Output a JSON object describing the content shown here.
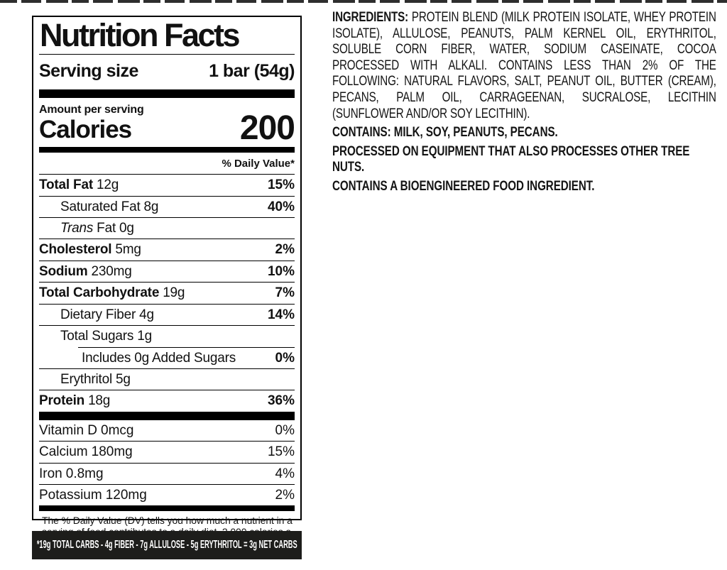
{
  "colors": {
    "text": "#111111",
    "divider": "#000000",
    "net_carbs_bg": "#1d1d1b",
    "net_carbs_text": "#ffffff"
  },
  "nutrition": {
    "title": "Nutrition Facts",
    "serving_size_label": "Serving size",
    "serving_size_value": "1 bar (54g)",
    "amount_per_serving": "Amount per serving",
    "calories_label": "Calories",
    "calories_value": "200",
    "daily_value_header": "% Daily Value*",
    "rows": [
      {
        "name": "Total Fat",
        "amount": "12g",
        "dv": "15%"
      },
      {
        "name": "Saturated Fat",
        "amount": "8g",
        "dv": "40%"
      },
      {
        "name_italic": "Trans",
        "name": "Fat",
        "amount": "0g",
        "dv": ""
      },
      {
        "name": "Cholesterol",
        "amount": "5mg",
        "dv": "2%"
      },
      {
        "name": "Sodium",
        "amount": "230mg",
        "dv": "10%"
      },
      {
        "name": "Total Carbohydrate",
        "amount": "19g",
        "dv": "7%"
      },
      {
        "name": "Dietary Fiber",
        "amount": "4g",
        "dv": "14%"
      },
      {
        "name": "Total Sugars",
        "amount": "1g",
        "dv": ""
      },
      {
        "name": "Includes 0g Added Sugars",
        "amount": "",
        "dv": "0%"
      },
      {
        "name": "Erythritol",
        "amount": "5g",
        "dv": ""
      },
      {
        "name": "Protein",
        "amount": "18g",
        "dv": "36%"
      }
    ],
    "vitamins": [
      {
        "name": "Vitamin D",
        "amount": "0mcg",
        "dv": "0%"
      },
      {
        "name": "Calcium",
        "amount": "180mg",
        "dv": "15%"
      },
      {
        "name": "Iron",
        "amount": "0.8mg",
        "dv": "4%"
      },
      {
        "name": "Potassium",
        "amount": "120mg",
        "dv": "2%"
      }
    ],
    "footnote": "The % Daily Value (DV) tells you how much a nutrient in a serving of food contributes to a daily diet. 2,000 calories a day is used for general nutrition advice.",
    "net_carbs_note": "*19g TOTAL CARBS - 4g FIBER - 7g ALLULOSE - 5g ERYTHRITOL = 3g NET CARBS"
  },
  "ingredients": {
    "heading": "INGREDIENTS:",
    "body": "PROTEIN BLEND (MILK PROTEIN ISOLATE, WHEY PROTEIN ISOLATE), ALLULOSE, PEANUTS, PALM KERNEL OIL, ERYTHRITOL, SOLUBLE CORN FIBER, WATER, SODIUM CASEINATE, COCOA PROCESSED WITH ALKALI. CONTAINS LESS THAN 2% OF THE FOLLOWING: NATURAL FLAVORS, SALT, PEANUT OIL, BUTTER (CREAM), PECANS, PALM OIL, CARRAGEENAN, SUCRALOSE, LECITHIN (SUNFLOWER AND/OR SOY LECITHIN).",
    "allergen_contains": "CONTAINS: MILK, SOY, PEANUTS, PECANS.",
    "processed_note": "PROCESSED ON EQUIPMENT THAT ALSO PROCESSES OTHER TREE NUTS.",
    "bioengineered_note": "CONTAINS A BIOENGINEERED FOOD INGREDIENT."
  }
}
